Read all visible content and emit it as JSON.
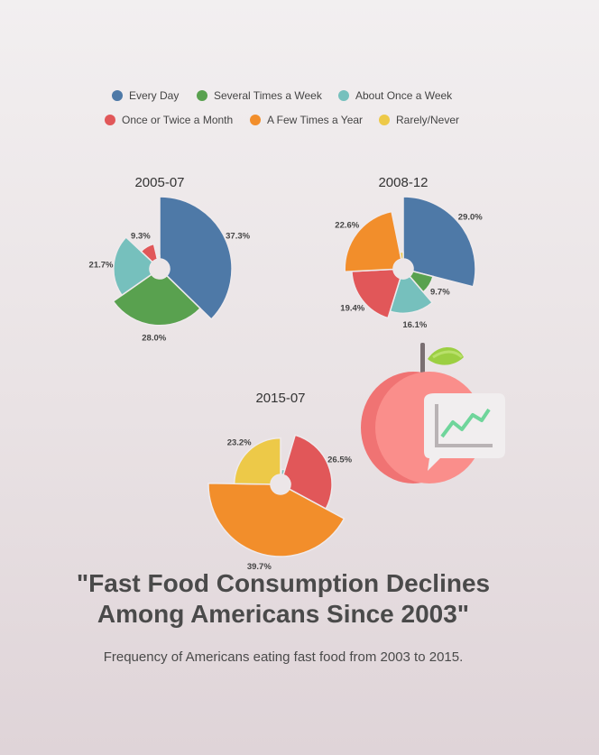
{
  "chart_data": {
    "type": "pie",
    "variant": "polar-area (radius proportional to share)",
    "title": "\"Fast Food Consumption Declines Among Americans Since 2003\"",
    "subtitle": "Frequency of Americans eating fast food from 2003 to 2015.",
    "categories": [
      "Every Day",
      "Several Times a Week",
      "About Once a Week",
      "Once or Twice a Month",
      "A Few Times a Year",
      "Rarely/Never"
    ],
    "colors": [
      "#4e79a7",
      "#59a14f",
      "#76c0bd",
      "#e15759",
      "#f28e2b",
      "#edc948"
    ],
    "legend_position": "top",
    "charts": [
      {
        "name": "2005-07",
        "values": [
          37.3,
          28.0,
          21.7,
          9.3,
          1.7,
          2.0
        ],
        "labels": [
          "37.3%",
          "28.0%",
          "21.7%",
          "9.3%",
          "",
          ""
        ]
      },
      {
        "name": "2008-12",
        "values": [
          29.0,
          9.7,
          16.1,
          19.4,
          22.6,
          3.2
        ],
        "labels": [
          "29.0%",
          "9.7%",
          "16.1%",
          "19.4%",
          "22.6%",
          ""
        ]
      },
      {
        "name": "2015-07",
        "values": [
          0.4,
          0.6,
          3.3,
          26.5,
          39.7,
          23.2
        ],
        "labels": [
          "",
          "",
          "",
          "26.5%",
          "39.7%",
          "23.2%"
        ]
      }
    ]
  },
  "decoration": {
    "icon": "apple-chart-icon"
  }
}
